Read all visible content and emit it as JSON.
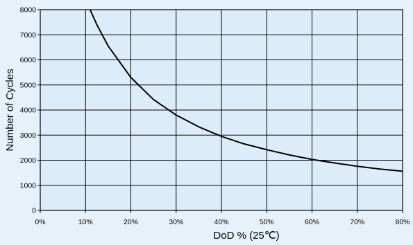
{
  "chart_data": {
    "type": "line",
    "title": "",
    "xlabel": "DoD % (25℃)",
    "ylabel": "Number of Cycles",
    "xlim": [
      0,
      80
    ],
    "ylim": [
      0,
      8000
    ],
    "x_ticks": [
      0,
      10,
      20,
      30,
      40,
      50,
      60,
      70,
      80
    ],
    "x_tick_labels": [
      "0%",
      "10%",
      "20%",
      "30%",
      "40%",
      "50%",
      "60%",
      "70%",
      "80%"
    ],
    "y_ticks": [
      0,
      1000,
      2000,
      3000,
      4000,
      5000,
      6000,
      7000,
      8000
    ],
    "y_tick_labels": [
      "0",
      "1000",
      "2000",
      "3000",
      "4000",
      "5000",
      "6000",
      "7000",
      "8000"
    ],
    "grid": true,
    "legend": "none",
    "series": [
      {
        "x": [
          11,
          12.5,
          15,
          20,
          25,
          30,
          35,
          40,
          45,
          50,
          55,
          60,
          65,
          70,
          75,
          80
        ],
        "y": [
          8000,
          7400,
          6550,
          5300,
          4420,
          3800,
          3330,
          2950,
          2650,
          2420,
          2210,
          2030,
          1890,
          1760,
          1650,
          1560
        ],
        "color": "#000000"
      }
    ],
    "colors": {
      "background": "#e6f1fa",
      "plot_background": "#dcedf9",
      "grid": "#000000",
      "line": "#000000"
    }
  }
}
